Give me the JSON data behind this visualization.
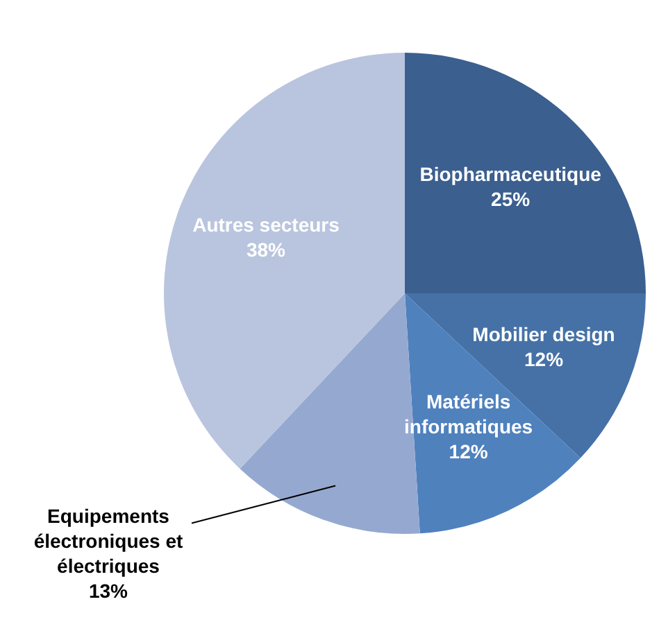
{
  "chart_data": {
    "type": "pie",
    "categories": [
      "Biopharmaceutique",
      "Mobilier design",
      "Matériels informatiques",
      "Equipements électroniques et électriques",
      "Autres secteurs"
    ],
    "values": [
      25,
      12,
      12,
      13,
      38
    ],
    "value_labels": [
      "25%",
      "12%",
      "12%",
      "13%",
      "38%"
    ],
    "colors": [
      "#3b5f8f",
      "#4571a7",
      "#4f81bd",
      "#95a9d0",
      "#b9c5de"
    ],
    "legend": false
  }
}
